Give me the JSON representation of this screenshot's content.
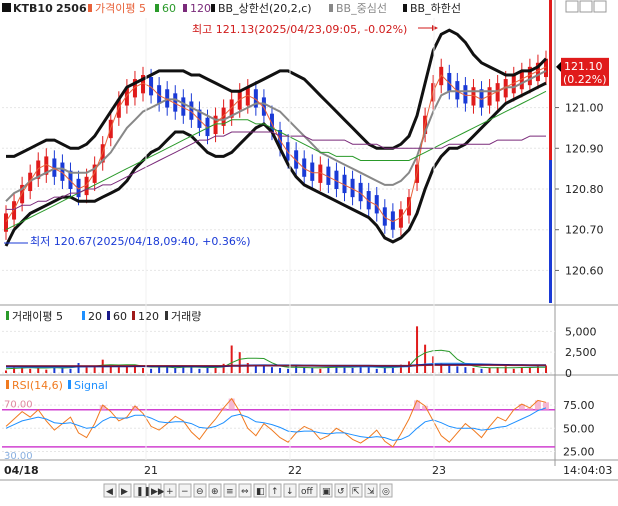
{
  "header": {
    "symbol": "KTB10",
    "contract": "2506",
    "legend": [
      {
        "label": "가격이평 5",
        "color": "#e8623a"
      },
      {
        "label": "60",
        "color": "#2a9a2a"
      },
      {
        "label": "120",
        "color": "#7a2a7a"
      },
      {
        "label": "BB_상한선(20,2,c)",
        "color": "#111111"
      },
      {
        "label": "BB_중심선",
        "color": "#888888"
      },
      {
        "label": "BB_하한선",
        "color": "#111111"
      }
    ],
    "icons": [
      "settings-icon",
      "flag-icon"
    ]
  },
  "annotations": {
    "high": "최고 121.13(2025/04/23,09:05, -0.02%)",
    "low": "최저 120.67(2025/04/18,09:40, +0.36%)"
  },
  "price_tag": {
    "value": "121.10",
    "change": "(0.22%)",
    "color": "#e01b1b"
  },
  "volume_legend": [
    {
      "label": "거래이평 5",
      "color": "#2a9a2a"
    },
    {
      "label": "20",
      "color": "#1e90ff"
    },
    {
      "label": "60",
      "color": "#1a1a8a"
    },
    {
      "label": "120",
      "color": "#a01a1a"
    },
    {
      "label": "거래량",
      "color": "#333333"
    }
  ],
  "rsi_legend": [
    {
      "label": "RSI(14,6)",
      "color": "#f07a20"
    },
    {
      "label": "Signal",
      "color": "#1e90ff"
    }
  ],
  "rsi_level_labels": {
    "upper": "70.00",
    "lower": "30.00"
  },
  "x_axis": {
    "labels": [
      "04/18",
      "21",
      "22",
      "23"
    ],
    "time": "14:04:03"
  },
  "toolbar": {
    "buttons": [
      "◀",
      "▶",
      "❚❚",
      "▶▶",
      "+",
      "−",
      "⊖",
      "⊕",
      "≡",
      "⇔",
      "◧",
      "↑",
      "↓",
      "off",
      "▣",
      "↺",
      "⇱",
      "⇲",
      "◎"
    ]
  },
  "chart_data": [
    {
      "type": "candlestick",
      "title": "KTB10 2506",
      "x_labels": [
        "04/18",
        "21",
        "22",
        "23"
      ],
      "y_ticks": [
        120.6,
        120.7,
        120.8,
        120.9,
        121.0
      ],
      "y_tick_labels": [
        "120.60",
        "120.70",
        "120.80",
        "120.90",
        "121.00"
      ],
      "ylim": [
        120.52,
        121.22
      ],
      "current_price": 121.1,
      "high": 121.13,
      "low": 120.67,
      "series": [
        {
          "name": "BB_상한선",
          "values": [
            120.88,
            120.88,
            120.89,
            120.9,
            120.91,
            120.92,
            120.92,
            120.91,
            120.9,
            120.9,
            120.91,
            120.93,
            120.96,
            120.99,
            121.02,
            121.05,
            121.06,
            121.07,
            121.08,
            121.09,
            121.09,
            121.09,
            121.09,
            121.08,
            121.08,
            121.07,
            121.06,
            121.05,
            121.04,
            121.04,
            121.05,
            121.06,
            121.07,
            121.08,
            121.09,
            121.09,
            121.08,
            121.07,
            121.05,
            121.03,
            121.01,
            120.99,
            120.97,
            120.95,
            120.93,
            120.91,
            120.9,
            120.9,
            120.9,
            120.91,
            120.93,
            120.98,
            121.06,
            121.14,
            121.18,
            121.19,
            121.18,
            121.16,
            121.13,
            121.11,
            121.1,
            121.09,
            121.08,
            121.08,
            121.09,
            121.09,
            121.1,
            121.12
          ]
        },
        {
          "name": "BB_중심선",
          "values": [
            120.77,
            120.79,
            120.8,
            120.82,
            120.83,
            120.84,
            120.85,
            120.85,
            120.84,
            120.84,
            120.84,
            120.85,
            120.87,
            120.89,
            120.92,
            120.95,
            120.97,
            120.99,
            121.0,
            121.01,
            121.02,
            121.02,
            121.01,
            121.0,
            120.99,
            120.98,
            120.97,
            120.97,
            120.98,
            120.99,
            121.0,
            121.01,
            121.01,
            121.0,
            120.99,
            120.97,
            120.95,
            120.93,
            120.91,
            120.89,
            120.88,
            120.87,
            120.86,
            120.85,
            120.84,
            120.83,
            120.82,
            120.81,
            120.81,
            120.82,
            120.84,
            120.88,
            120.94,
            120.99,
            121.03,
            121.04,
            121.04,
            121.04,
            121.04,
            121.04,
            121.04,
            121.04,
            121.05,
            121.05,
            121.06,
            121.07,
            121.08,
            121.09
          ]
        },
        {
          "name": "BB_하한선",
          "values": [
            120.66,
            120.7,
            120.72,
            120.74,
            120.75,
            120.76,
            120.77,
            120.78,
            120.78,
            120.77,
            120.77,
            120.77,
            120.78,
            120.79,
            120.8,
            120.82,
            120.85,
            120.87,
            120.89,
            120.9,
            120.92,
            120.94,
            120.94,
            120.93,
            120.91,
            120.89,
            120.88,
            120.88,
            120.89,
            120.91,
            120.93,
            120.95,
            120.96,
            120.94,
            120.9,
            120.86,
            120.83,
            120.81,
            120.8,
            120.79,
            120.78,
            120.77,
            120.76,
            120.75,
            120.74,
            120.73,
            120.71,
            120.68,
            120.67,
            120.68,
            120.7,
            120.74,
            120.8,
            120.85,
            120.88,
            120.9,
            120.9,
            120.91,
            120.93,
            120.95,
            120.97,
            120.99,
            121.01,
            121.02,
            121.03,
            121.04,
            121.05,
            121.06
          ]
        },
        {
          "name": "가격이평 5",
          "values": [
            120.72,
            120.75,
            120.79,
            120.82,
            120.85,
            120.86,
            120.85,
            120.84,
            120.82,
            120.8,
            120.81,
            120.84,
            120.89,
            120.95,
            121.0,
            121.03,
            121.05,
            121.06,
            121.05,
            121.03,
            121.02,
            121.01,
            121.0,
            120.99,
            120.97,
            120.95,
            120.96,
            120.98,
            121.0,
            121.02,
            121.03,
            121.02,
            121.0,
            120.96,
            120.92,
            120.89,
            120.87,
            120.85,
            120.84,
            120.84,
            120.83,
            120.82,
            120.81,
            120.8,
            120.79,
            120.77,
            120.76,
            120.73,
            120.72,
            120.73,
            120.76,
            120.84,
            120.96,
            121.04,
            121.08,
            121.06,
            121.04,
            121.03,
            121.03,
            121.02,
            121.03,
            121.04,
            121.05,
            121.06,
            121.07,
            121.08,
            121.09,
            121.1
          ]
        },
        {
          "name": "60",
          "values": [
            120.7,
            120.71,
            120.72,
            120.73,
            120.74,
            120.75,
            120.76,
            120.77,
            120.78,
            120.79,
            120.8,
            120.81,
            120.82,
            120.83,
            120.84,
            120.85,
            120.86,
            120.87,
            120.88,
            120.89,
            120.9,
            120.91,
            120.92,
            120.93,
            120.94,
            120.95,
            120.96,
            120.96,
            120.97,
            120.97,
            120.97,
            120.96,
            120.96,
            120.95,
            120.94,
            120.93,
            120.92,
            120.91,
            120.9,
            120.89,
            120.89,
            120.88,
            120.88,
            120.88,
            120.87,
            120.87,
            120.87,
            120.87,
            120.87,
            120.87,
            120.87,
            120.88,
            120.89,
            120.9,
            120.91,
            120.92,
            120.93,
            120.94,
            120.95,
            120.96,
            120.97,
            120.98,
            120.99,
            121.0,
            121.01,
            121.02,
            121.03,
            121.04
          ]
        },
        {
          "name": "120",
          "values": [
            120.75,
            120.75,
            120.76,
            120.76,
            120.77,
            120.77,
            120.78,
            120.78,
            120.79,
            120.79,
            120.8,
            120.8,
            120.81,
            120.81,
            120.82,
            120.83,
            120.84,
            120.85,
            120.86,
            120.87,
            120.88,
            120.89,
            120.9,
            120.91,
            120.92,
            120.92,
            120.93,
            120.93,
            120.94,
            120.94,
            120.94,
            120.94,
            120.94,
            120.94,
            120.93,
            120.93,
            120.93,
            120.93,
            120.92,
            120.92,
            120.92,
            120.92,
            120.92,
            120.91,
            120.91,
            120.91,
            120.91,
            120.9,
            120.9,
            120.9,
            120.9,
            120.9,
            120.9,
            120.9,
            120.9,
            120.91,
            120.91,
            120.91,
            120.91,
            120.91,
            120.91,
            120.92,
            120.92,
            120.92,
            120.92,
            120.93,
            120.93,
            120.93
          ]
        }
      ]
    },
    {
      "type": "bar",
      "title": "거래량",
      "y_ticks": [
        0,
        2500,
        5000
      ],
      "y_tick_labels": [
        "0",
        "2,500",
        "5,000"
      ],
      "ylim": [
        0,
        6000
      ],
      "values": [
        300,
        900,
        700,
        500,
        600,
        400,
        800,
        600,
        500,
        1200,
        700,
        900,
        1600,
        900,
        700,
        800,
        1000,
        600,
        500,
        700,
        800,
        600,
        900,
        700,
        500,
        600,
        700,
        1100,
        3300,
        2500,
        1200,
        800,
        900,
        700,
        600,
        500,
        800,
        700,
        600,
        500,
        700,
        900,
        800,
        600,
        700,
        800,
        500,
        600,
        700,
        1000,
        1400,
        5600,
        3400,
        2000,
        1200,
        900,
        800,
        700,
        600,
        500,
        600,
        700,
        800,
        500,
        700,
        600,
        800,
        900
      ],
      "series": [
        {
          "name": "거래이평 5",
          "values": [
            500,
            550,
            600,
            650,
            600,
            600,
            650,
            600,
            650,
            750,
            780,
            800,
            950,
            1000,
            960,
            980,
            1000,
            800,
            720,
            720,
            720,
            640,
            700,
            720,
            700,
            660,
            660,
            720,
            1240,
            1640,
            1760,
            1780,
            1740,
            1220,
            840,
            700,
            700,
            660,
            640,
            620,
            660,
            680,
            700,
            700,
            740,
            760,
            680,
            640,
            660,
            720,
            840,
            1860,
            2420,
            2680,
            2720,
            2580,
            1660,
            1120,
            840,
            700,
            640,
            620,
            640,
            620,
            660,
            660,
            680,
            700
          ]
        },
        {
          "name": "20",
          "values": [
            700,
            700,
            700,
            690,
            690,
            690,
            690,
            700,
            700,
            720,
            730,
            740,
            760,
            780,
            790,
            800,
            810,
            800,
            790,
            790,
            780,
            770,
            770,
            770,
            760,
            750,
            750,
            760,
            850,
            920,
            950,
            960,
            970,
            960,
            950,
            930,
            910,
            890,
            870,
            840,
            810,
            780,
            760,
            740,
            730,
            730,
            720,
            720,
            720,
            730,
            760,
            950,
            1080,
            1140,
            1170,
            1180,
            1170,
            1150,
            1120,
            1090,
            1050,
            1000,
            950,
            920,
            900,
            880,
            870,
            860
          ]
        },
        {
          "name": "60",
          "values": [
            800,
            800,
            800,
            800,
            800,
            800,
            800,
            800,
            800,
            800,
            810,
            810,
            810,
            820,
            820,
            820,
            830,
            830,
            830,
            830,
            830,
            830,
            830,
            830,
            830,
            830,
            830,
            830,
            860,
            880,
            890,
            900,
            900,
            900,
            900,
            900,
            900,
            890,
            890,
            880,
            880,
            870,
            870,
            860,
            860,
            860,
            850,
            850,
            850,
            850,
            860,
            920,
            960,
            980,
            990,
            1000,
            1000,
            1000,
            990,
            990,
            980,
            970,
            960,
            950,
            950,
            940,
            940,
            930
          ]
        },
        {
          "name": "120",
          "values": [
            850,
            850,
            850,
            850,
            850,
            850,
            850,
            850,
            850,
            850,
            850,
            850,
            860,
            860,
            860,
            860,
            860,
            860,
            860,
            860,
            860,
            860,
            860,
            860,
            860,
            860,
            860,
            860,
            870,
            880,
            880,
            880,
            880,
            880,
            880,
            880,
            880,
            880,
            880,
            880,
            880,
            880,
            880,
            880,
            880,
            870,
            870,
            870,
            870,
            870,
            870,
            900,
            920,
            930,
            930,
            940,
            940,
            940,
            940,
            940,
            940,
            940,
            930,
            930,
            930,
            930,
            930,
            930
          ]
        }
      ]
    },
    {
      "type": "line",
      "title": "RSI(14,6)",
      "y_ticks": [
        25,
        50,
        75
      ],
      "y_tick_labels": [
        "25.00",
        "50.00",
        "75.00"
      ],
      "ylim": [
        18,
        88
      ],
      "reference_lines": [
        70,
        30
      ],
      "series": [
        {
          "name": "RSI(14,6)",
          "values": [
            52,
            60,
            68,
            62,
            70,
            58,
            48,
            55,
            62,
            45,
            40,
            55,
            75,
            68,
            58,
            62,
            74,
            66,
            52,
            48,
            55,
            63,
            58,
            46,
            38,
            50,
            60,
            72,
            82,
            68,
            50,
            42,
            55,
            48,
            40,
            35,
            45,
            52,
            48,
            38,
            42,
            50,
            45,
            38,
            34,
            40,
            48,
            36,
            30,
            44,
            60,
            80,
            74,
            58,
            42,
            35,
            45,
            55,
            48,
            40,
            52,
            62,
            58,
            70,
            76,
            72,
            80,
            78
          ]
        },
        {
          "name": "Signal",
          "values": [
            50,
            54,
            58,
            60,
            62,
            60,
            56,
            55,
            56,
            53,
            50,
            51,
            58,
            62,
            61,
            61,
            64,
            64,
            61,
            57,
            56,
            57,
            57,
            55,
            51,
            50,
            52,
            56,
            63,
            65,
            62,
            57,
            56,
            54,
            51,
            47,
            46,
            47,
            47,
            45,
            44,
            45,
            45,
            43,
            41,
            40,
            41,
            40,
            37,
            38,
            42,
            50,
            57,
            59,
            56,
            52,
            50,
            50,
            50,
            48,
            49,
            51,
            52,
            56,
            60,
            64,
            69,
            72
          ]
        }
      ]
    }
  ]
}
